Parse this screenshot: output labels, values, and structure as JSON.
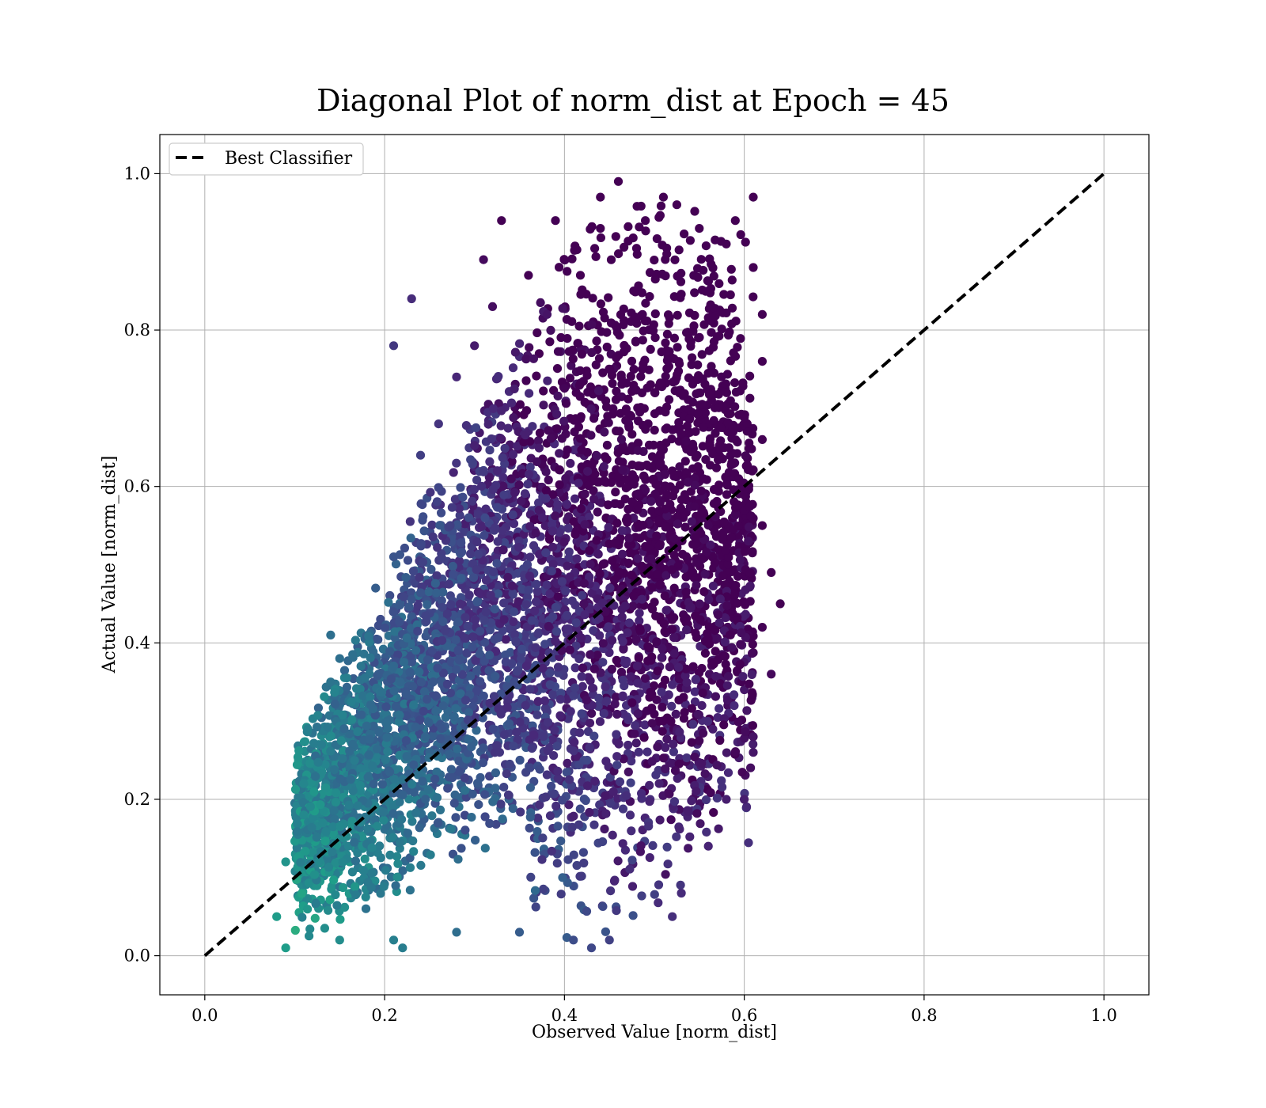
{
  "chart_data": {
    "type": "scatter",
    "title": "Diagonal Plot of norm_dist at Epoch = 45",
    "xlabel": "Observed Value [norm_dist]",
    "ylabel": "Actual Value [norm_dist]",
    "xlim": [
      -0.05,
      1.05
    ],
    "ylim": [
      -0.05,
      1.05
    ],
    "xticks": [
      "0.0",
      "0.2",
      "0.4",
      "0.6",
      "0.8",
      "1.0"
    ],
    "yticks": [
      "0.0",
      "0.2",
      "0.4",
      "0.6",
      "0.8",
      "1.0"
    ],
    "xtick_values": [
      0,
      0.2,
      0.4,
      0.6,
      0.8,
      1.0
    ],
    "ytick_values": [
      0,
      0.2,
      0.4,
      0.6,
      0.8,
      1.0
    ],
    "grid": true,
    "colormap": "viridis",
    "legend": {
      "location": "upper left",
      "entries": [
        "Best Classifier"
      ]
    },
    "reference_line": {
      "name": "Best Classifier",
      "x": [
        0,
        1
      ],
      "y": [
        0,
        1
      ],
      "style": "dashed",
      "color": "#000000"
    },
    "point_cloud": {
      "x_range": [
        0.08,
        0.64
      ],
      "y_range": [
        0.0,
        0.99
      ],
      "color_trend": "yellow-green at low observed values, dark purple at high actual values"
    },
    "points": [
      {
        "x": 0.46,
        "y": 0.99
      },
      {
        "x": 0.44,
        "y": 0.97
      },
      {
        "x": 0.51,
        "y": 0.97
      },
      {
        "x": 0.61,
        "y": 0.97
      },
      {
        "x": 0.39,
        "y": 0.94
      },
      {
        "x": 0.59,
        "y": 0.94
      },
      {
        "x": 0.33,
        "y": 0.94
      },
      {
        "x": 0.31,
        "y": 0.89
      },
      {
        "x": 0.23,
        "y": 0.84
      },
      {
        "x": 0.21,
        "y": 0.78
      },
      {
        "x": 0.61,
        "y": 0.88
      },
      {
        "x": 0.62,
        "y": 0.82
      },
      {
        "x": 0.62,
        "y": 0.76
      },
      {
        "x": 0.62,
        "y": 0.66
      },
      {
        "x": 0.62,
        "y": 0.55
      },
      {
        "x": 0.63,
        "y": 0.49
      },
      {
        "x": 0.64,
        "y": 0.45
      },
      {
        "x": 0.63,
        "y": 0.36
      },
      {
        "x": 0.62,
        "y": 0.42
      },
      {
        "x": 0.61,
        "y": 0.28
      },
      {
        "x": 0.61,
        "y": 0.26
      },
      {
        "x": 0.6,
        "y": 0.2
      },
      {
        "x": 0.58,
        "y": 0.2
      },
      {
        "x": 0.56,
        "y": 0.14
      },
      {
        "x": 0.53,
        "y": 0.08
      },
      {
        "x": 0.52,
        "y": 0.05
      },
      {
        "x": 0.45,
        "y": 0.02
      },
      {
        "x": 0.43,
        "y": 0.01
      },
      {
        "x": 0.41,
        "y": 0.02
      },
      {
        "x": 0.35,
        "y": 0.03
      },
      {
        "x": 0.28,
        "y": 0.03
      },
      {
        "x": 0.22,
        "y": 0.01
      },
      {
        "x": 0.21,
        "y": 0.02
      },
      {
        "x": 0.15,
        "y": 0.02
      },
      {
        "x": 0.09,
        "y": 0.01
      },
      {
        "x": 0.08,
        "y": 0.05
      },
      {
        "x": 0.09,
        "y": 0.12
      },
      {
        "x": 0.11,
        "y": 0.18
      },
      {
        "x": 0.11,
        "y": 0.22
      },
      {
        "x": 0.13,
        "y": 0.27
      },
      {
        "x": 0.14,
        "y": 0.35
      },
      {
        "x": 0.15,
        "y": 0.38
      },
      {
        "x": 0.14,
        "y": 0.41
      },
      {
        "x": 0.19,
        "y": 0.47
      },
      {
        "x": 0.21,
        "y": 0.51
      },
      {
        "x": 0.24,
        "y": 0.64
      },
      {
        "x": 0.26,
        "y": 0.68
      },
      {
        "x": 0.28,
        "y": 0.74
      },
      {
        "x": 0.3,
        "y": 0.78
      },
      {
        "x": 0.32,
        "y": 0.83
      },
      {
        "x": 0.36,
        "y": 0.87
      },
      {
        "x": 0.44,
        "y": 0.93
      },
      {
        "x": 0.49,
        "y": 0.94
      },
      {
        "x": 0.55,
        "y": 0.93
      },
      {
        "x": 0.58,
        "y": 0.91
      }
    ]
  }
}
